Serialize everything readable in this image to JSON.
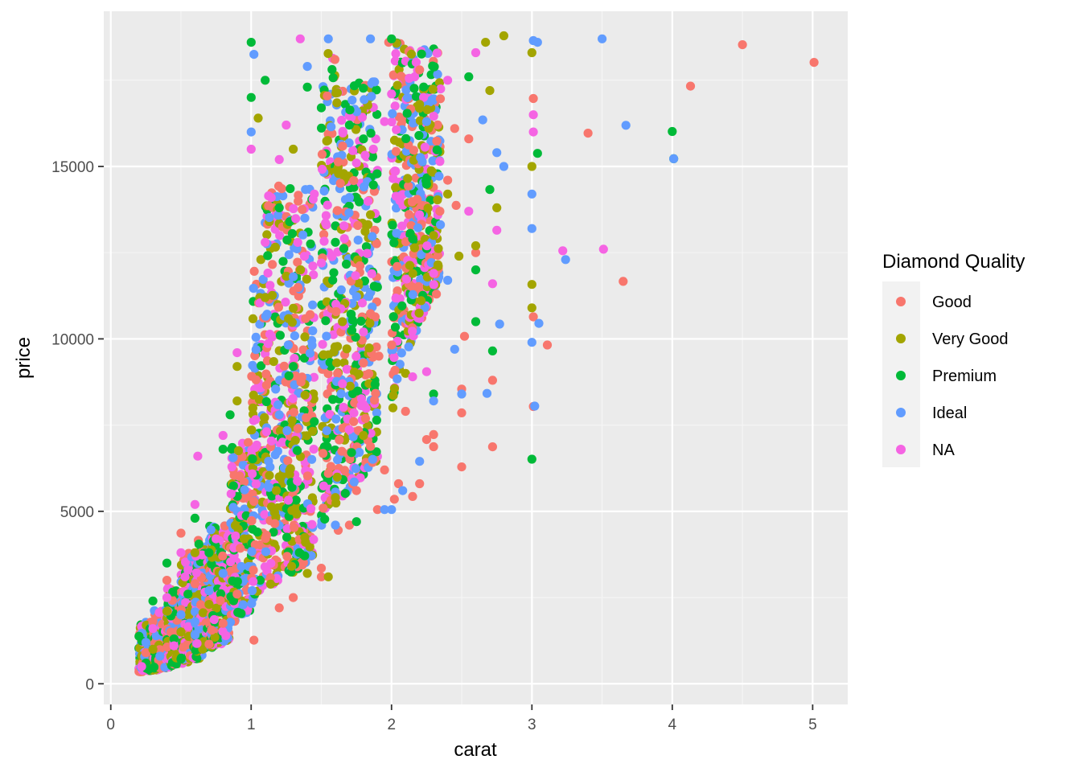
{
  "chart_data": {
    "type": "scatter",
    "title": "",
    "xlabel": "carat",
    "ylabel": "price",
    "xlim": [
      -0.05,
      5.25
    ],
    "ylim": [
      -600,
      19500
    ],
    "x_ticks": [
      0,
      1,
      2,
      3,
      4,
      5
    ],
    "y_ticks": [
      0,
      5000,
      10000,
      15000
    ],
    "x_tick_labels": [
      "0",
      "1",
      "2",
      "3",
      "4",
      "5"
    ],
    "y_tick_labels": [
      "0",
      "5000",
      "10000",
      "15000"
    ],
    "grid": true,
    "legend": {
      "title": "Diamond Quality",
      "position": "right"
    },
    "series": [
      {
        "name": "Good",
        "color": "#F8766D",
        "points": [
          [
            5.01,
            18018
          ],
          [
            4.5,
            18531
          ],
          [
            4.13,
            17329
          ],
          [
            3.4,
            15964
          ],
          [
            3.65,
            11668
          ],
          [
            3.11,
            9823
          ],
          [
            3.01,
            16970
          ],
          [
            3.01,
            10640
          ],
          [
            3.01,
            8040
          ],
          [
            2.72,
            6870
          ],
          [
            2.72,
            8800
          ],
          [
            2.5,
            7854
          ],
          [
            2.5,
            6289
          ],
          [
            2.5,
            8546
          ],
          [
            2.52,
            10076
          ],
          [
            2.6,
            12500
          ],
          [
            2.46,
            13870
          ],
          [
            2.3,
            7226
          ],
          [
            2.3,
            6873
          ],
          [
            2.25,
            7080
          ],
          [
            2.2,
            5800
          ],
          [
            2.15,
            5430
          ],
          [
            2.1,
            7900
          ],
          [
            2.05,
            5800
          ],
          [
            2.02,
            5350
          ],
          [
            1.95,
            6200
          ],
          [
            1.9,
            5050
          ],
          [
            1.85,
            6880
          ],
          [
            1.8,
            9300
          ],
          [
            1.75,
            5600
          ],
          [
            1.7,
            4600
          ],
          [
            1.62,
            4450
          ],
          [
            1.5,
            3100
          ],
          [
            1.5,
            3350
          ],
          [
            1.3,
            2500
          ],
          [
            1.2,
            2200
          ],
          [
            1.02,
            1262
          ],
          [
            0.9,
            2600
          ],
          [
            0.8,
            1750
          ],
          [
            0.7,
            1150
          ],
          [
            0.6,
            2900
          ],
          [
            0.5,
            4366
          ],
          [
            0.4,
            3000
          ],
          [
            0.3,
            1800
          ],
          [
            0.25,
            900
          ],
          [
            1.98,
            18600
          ],
          [
            2.2,
            17800
          ],
          [
            2.45,
            16100
          ],
          [
            2.55,
            15800
          ],
          [
            2.4,
            14600
          ],
          [
            2.32,
            11300
          ],
          [
            2.04,
            12100
          ],
          [
            1.91,
            9500
          ],
          [
            1.73,
            7600
          ],
          [
            1.55,
            6100
          ]
        ]
      },
      {
        "name": "Very Good",
        "color": "#A3A500",
        "points": [
          [
            2.8,
            18788
          ],
          [
            2.67,
            18600
          ],
          [
            3.0,
            18300
          ],
          [
            3.0,
            15000
          ],
          [
            3.0,
            11580
          ],
          [
            3.0,
            10900
          ],
          [
            2.75,
            13800
          ],
          [
            2.6,
            12700
          ],
          [
            2.4,
            14200
          ],
          [
            2.3,
            13000
          ],
          [
            2.1,
            9000
          ],
          [
            2.01,
            8000
          ],
          [
            1.05,
            16400
          ],
          [
            0.9,
            9200
          ],
          [
            0.9,
            8200
          ],
          [
            0.6,
            3800
          ],
          [
            0.4,
            2100
          ],
          [
            0.3,
            1000
          ],
          [
            0.5,
            1500
          ],
          [
            0.7,
            2300
          ],
          [
            1.2,
            6000
          ],
          [
            1.4,
            3200
          ],
          [
            1.55,
            3100
          ],
          [
            1.6,
            5400
          ],
          [
            1.8,
            7200
          ],
          [
            1.65,
            10500
          ],
          [
            2.2,
            16800
          ],
          [
            2.48,
            12400
          ],
          [
            2.7,
            17200
          ],
          [
            1.3,
            15500
          ],
          [
            0.95,
            4200
          ],
          [
            1.1,
            11200
          ],
          [
            1.85,
            13600
          ]
        ]
      },
      {
        "name": "Premium",
        "color": "#00BA38",
        "points": [
          [
            4.01,
            15223
          ],
          [
            4.0,
            16013
          ],
          [
            3.04,
            15380
          ],
          [
            3.0,
            6512
          ],
          [
            2.72,
            9650
          ],
          [
            2.7,
            14330
          ],
          [
            2.6,
            10500
          ],
          [
            2.6,
            12000
          ],
          [
            2.55,
            17600
          ],
          [
            1.9,
            11500
          ],
          [
            1.75,
            4700
          ],
          [
            1.7,
            16200
          ],
          [
            1.5,
            16700
          ],
          [
            1.0,
            18600
          ],
          [
            1.0,
            17000
          ],
          [
            1.1,
            17500
          ],
          [
            0.85,
            7800
          ],
          [
            0.8,
            6800
          ],
          [
            0.6,
            4800
          ],
          [
            0.4,
            3500
          ],
          [
            0.3,
            2400
          ],
          [
            0.25,
            600
          ],
          [
            0.45,
            1300
          ],
          [
            0.55,
            2600
          ],
          [
            0.7,
            3800
          ],
          [
            1.2,
            13800
          ],
          [
            1.3,
            9200
          ],
          [
            1.45,
            7600
          ],
          [
            1.6,
            12800
          ],
          [
            1.8,
            15800
          ],
          [
            2.0,
            18700
          ],
          [
            2.3,
            8400
          ],
          [
            2.15,
            12900
          ],
          [
            1.4,
            17300
          ]
        ]
      },
      {
        "name": "Ideal",
        "color": "#619CFF",
        "points": [
          [
            3.5,
            18701
          ],
          [
            3.67,
            16193
          ],
          [
            4.01,
            15223
          ],
          [
            3.24,
            12300
          ],
          [
            3.04,
            18600
          ],
          [
            3.01,
            18650
          ],
          [
            3.0,
            14200
          ],
          [
            3.0,
            13200
          ],
          [
            3.05,
            10450
          ],
          [
            3.0,
            9900
          ],
          [
            3.02,
            8050
          ],
          [
            2.8,
            15000
          ],
          [
            2.75,
            15400
          ],
          [
            2.77,
            10430
          ],
          [
            2.68,
            8420
          ],
          [
            2.45,
            9700
          ],
          [
            2.5,
            8400
          ],
          [
            2.3,
            8200
          ],
          [
            2.2,
            6450
          ],
          [
            2.08,
            5600
          ],
          [
            2.0,
            5050
          ],
          [
            1.95,
            5050
          ],
          [
            1.6,
            4600
          ],
          [
            1.55,
            18700
          ],
          [
            1.4,
            17900
          ],
          [
            1.02,
            18250
          ],
          [
            1.0,
            16000
          ],
          [
            0.8,
            3200
          ],
          [
            0.6,
            1800
          ],
          [
            0.35,
            800
          ],
          [
            0.25,
            1200
          ],
          [
            0.7,
            2700
          ],
          [
            0.5,
            2000
          ],
          [
            1.2,
            7800
          ],
          [
            1.3,
            11800
          ],
          [
            1.7,
            14100
          ],
          [
            1.85,
            18700
          ],
          [
            2.25,
            16300
          ],
          [
            2.65,
            16350
          ],
          [
            2.4,
            11700
          ]
        ]
      },
      {
        "name": "NA",
        "color": "#F564E3",
        "points": [
          [
            3.51,
            12600
          ],
          [
            3.22,
            12556
          ],
          [
            3.01,
            16500
          ],
          [
            3.01,
            16000
          ],
          [
            2.75,
            13150
          ],
          [
            2.72,
            11600
          ],
          [
            2.6,
            18300
          ],
          [
            2.55,
            13700
          ],
          [
            2.3,
            11900
          ],
          [
            2.25,
            9050
          ],
          [
            2.0,
            17100
          ],
          [
            1.95,
            16300
          ],
          [
            1.35,
            18700
          ],
          [
            1.25,
            16200
          ],
          [
            1.2,
            15200
          ],
          [
            1.0,
            15500
          ],
          [
            0.9,
            9600
          ],
          [
            0.8,
            7200
          ],
          [
            0.62,
            6600
          ],
          [
            0.6,
            5200
          ],
          [
            0.5,
            3800
          ],
          [
            0.4,
            2500
          ],
          [
            0.3,
            1600
          ],
          [
            0.22,
            500
          ],
          [
            0.45,
            1100
          ],
          [
            0.55,
            3300
          ],
          [
            0.75,
            4200
          ],
          [
            1.1,
            12800
          ],
          [
            1.5,
            12200
          ],
          [
            1.65,
            8700
          ],
          [
            1.8,
            10200
          ],
          [
            2.15,
            8900
          ],
          [
            1.75,
            15100
          ],
          [
            1.45,
            14200
          ],
          [
            2.4,
            17500
          ]
        ]
      }
    ],
    "bands": [
      {
        "x0": 0.2,
        "x1": 0.35,
        "y0": 330,
        "y1": 1800
      },
      {
        "x0": 0.3,
        "x1": 0.45,
        "y0": 400,
        "y1": 2200
      },
      {
        "x0": 0.4,
        "x1": 0.55,
        "y0": 500,
        "y1": 2800
      },
      {
        "x0": 0.5,
        "x1": 0.65,
        "y0": 600,
        "y1": 3800
      },
      {
        "x0": 0.6,
        "x1": 0.75,
        "y0": 900,
        "y1": 4200
      },
      {
        "x0": 0.7,
        "x1": 0.85,
        "y0": 1000,
        "y1": 4600
      },
      {
        "x0": 0.85,
        "x1": 0.99,
        "y0": 1700,
        "y1": 7000
      },
      {
        "x0": 1.0,
        "x1": 1.1,
        "y0": 2300,
        "y1": 12500
      },
      {
        "x0": 1.1,
        "x1": 1.25,
        "y0": 2600,
        "y1": 14500
      },
      {
        "x0": 1.25,
        "x1": 1.45,
        "y0": 3000,
        "y1": 14500
      },
      {
        "x0": 1.5,
        "x1": 1.6,
        "y0": 4500,
        "y1": 18700
      },
      {
        "x0": 1.6,
        "x1": 1.9,
        "y0": 5200,
        "y1": 17500
      },
      {
        "x0": 2.0,
        "x1": 2.1,
        "y0": 8000,
        "y1": 18700
      },
      {
        "x0": 2.1,
        "x1": 2.35,
        "y0": 9500,
        "y1": 18500
      }
    ]
  }
}
